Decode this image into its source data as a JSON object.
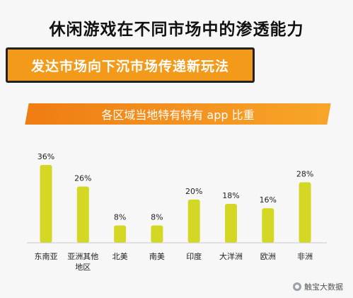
{
  "header": {
    "title": "休闲游戏在不同市场中的渗透能力",
    "banner": "发达市场向下沉市场传递新玩法"
  },
  "chart_data": {
    "type": "bar",
    "title": "各区域当地特有特有 app 比重",
    "categories": [
      "东南亚",
      "亚洲其他地区",
      "北美",
      "南美",
      "印度",
      "大洋洲",
      "欧洲",
      "非洲"
    ],
    "category_lines": [
      [
        "东南亚"
      ],
      [
        "亚洲其他",
        "地区"
      ],
      [
        "北美"
      ],
      [
        "南美"
      ],
      [
        "印度"
      ],
      [
        "大洋洲"
      ],
      [
        "欧洲"
      ],
      [
        "非洲"
      ]
    ],
    "values": [
      36,
      26,
      8,
      8,
      20,
      18,
      16,
      28
    ],
    "value_labels": [
      "36%",
      "26%",
      "8%",
      "8%",
      "20%",
      "18%",
      "16%",
      "28%"
    ],
    "ylim": [
      0,
      36
    ],
    "bar_color": "#d4d824",
    "grid": false
  },
  "watermark": {
    "text": "触宝大数据",
    "icon": "wechat-icon"
  }
}
